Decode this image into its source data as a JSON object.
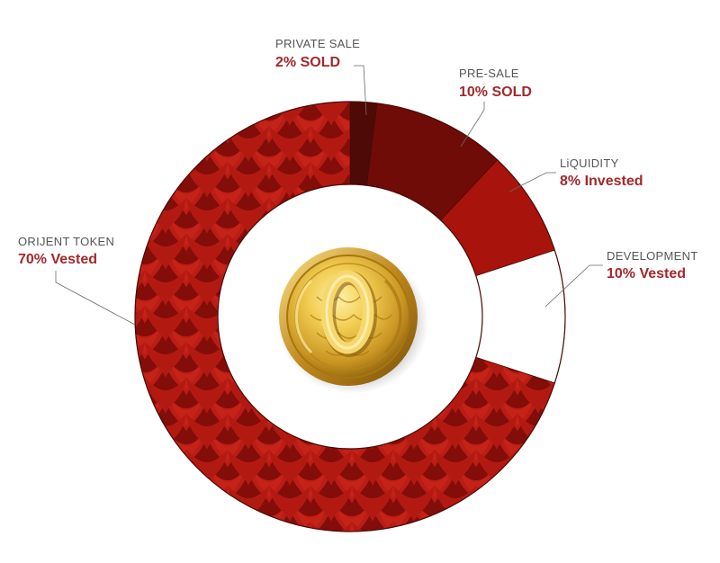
{
  "chart_data": {
    "type": "pie",
    "donut": true,
    "slices": [
      {
        "label": "PRIVATE SALE",
        "value_label": "2% SOLD",
        "value": 2,
        "color": "#4e0a07"
      },
      {
        "label": "PRE-SALE",
        "value_label": "10% SOLD",
        "value": 10,
        "color": "#6f0c07"
      },
      {
        "label": "LiQUIDITY",
        "value_label": "8% Invested",
        "value": 8,
        "color": "#a8140c"
      },
      {
        "label": "DEVELOPMENT",
        "value_label": "10% Vested",
        "value": 10,
        "color": "#ffffff"
      },
      {
        "label": "ORIJENT TOKEN",
        "value_label": "70% Vested",
        "value": 70,
        "color": "#a0160e"
      }
    ],
    "label_value_color": "#a3282b",
    "center_icon": "gold-coin-icon",
    "start_angle_deg": 0,
    "direction": "clockwise"
  }
}
